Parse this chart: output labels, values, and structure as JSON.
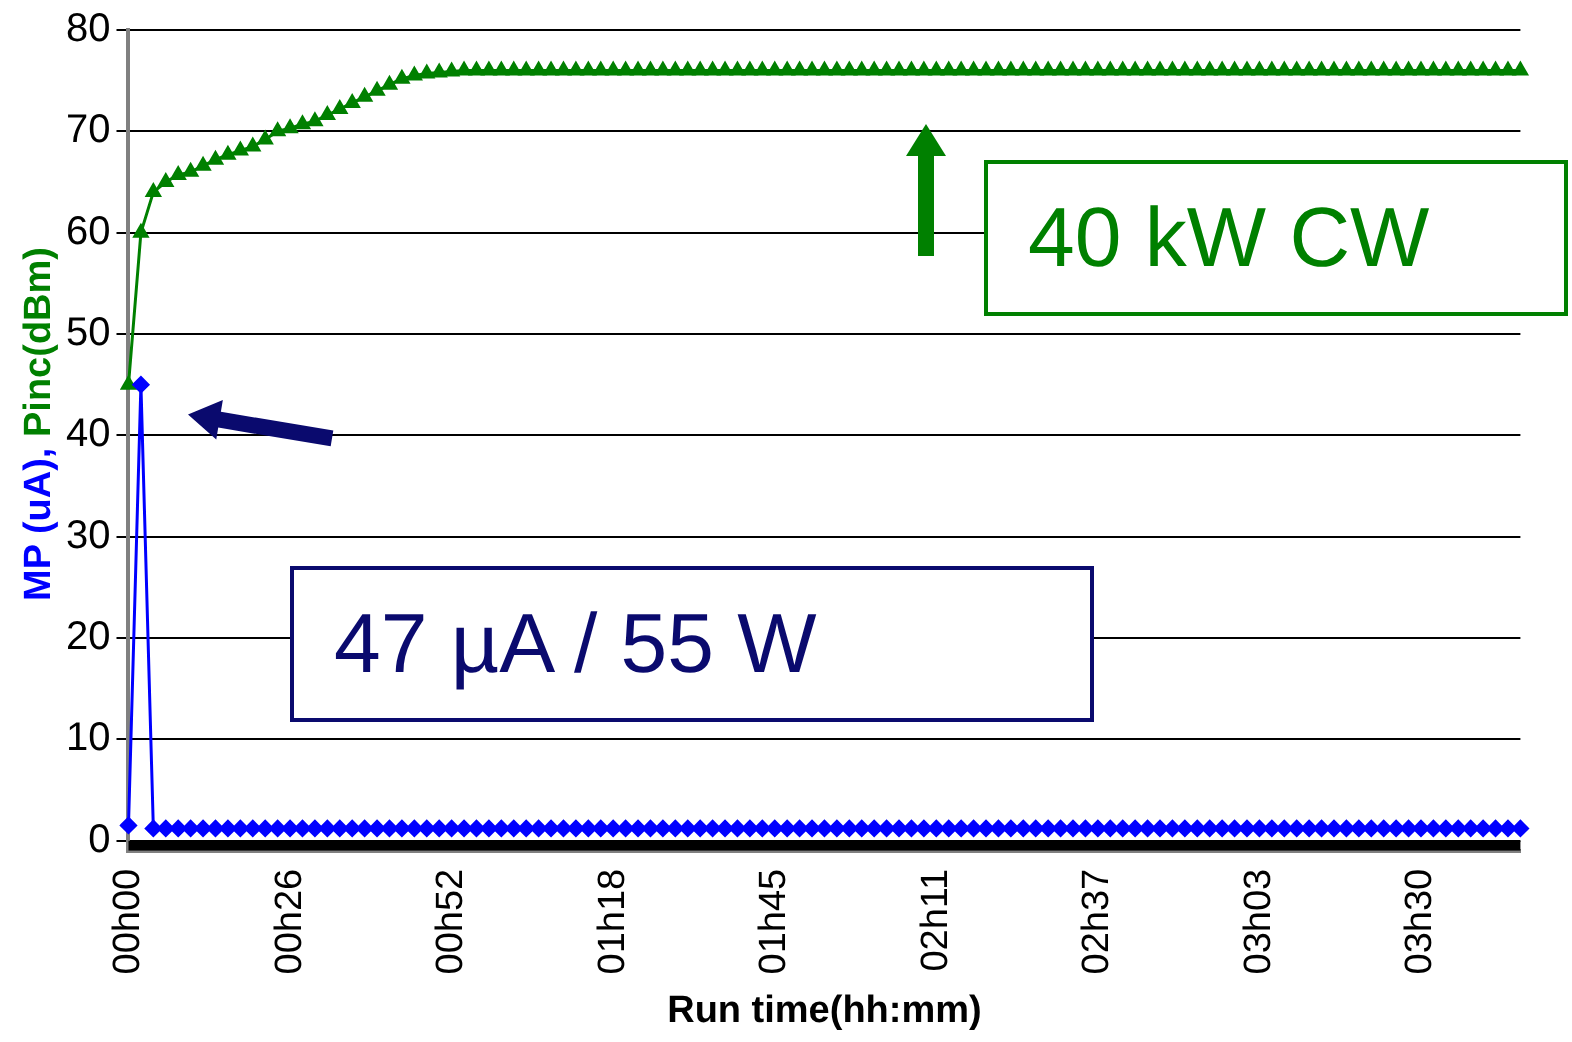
{
  "chart_data": {
    "type": "line",
    "xlabel": "Run time(hh:mm)",
    "ylabel": "MP (uA), Pinc(dBm)",
    "categories": [
      "00h00",
      null,
      null,
      null,
      null,
      null,
      null,
      null,
      null,
      null,
      null,
      null,
      null,
      "00h26",
      null,
      null,
      null,
      null,
      null,
      null,
      null,
      null,
      null,
      null,
      null,
      null,
      "00h52",
      null,
      null,
      null,
      null,
      null,
      null,
      null,
      null,
      null,
      null,
      null,
      null,
      "01h18",
      null,
      null,
      null,
      null,
      null,
      null,
      null,
      null,
      null,
      null,
      null,
      null,
      "01h45",
      null,
      null,
      null,
      null,
      null,
      null,
      null,
      null,
      null,
      null,
      null,
      null,
      "02h11",
      null,
      null,
      null,
      null,
      null,
      null,
      null,
      null,
      null,
      null,
      null,
      null,
      "02h37",
      null,
      null,
      null,
      null,
      null,
      null,
      null,
      null,
      null,
      null,
      null,
      null,
      "03h03",
      null,
      null,
      null,
      null,
      null,
      null,
      null,
      null,
      null,
      null,
      null,
      null,
      "03h30",
      null,
      null,
      null,
      null,
      null,
      null,
      null,
      null
    ],
    "ylim": [
      -1,
      80
    ],
    "yticks": [
      0,
      10,
      20,
      30,
      40,
      50,
      60,
      70,
      80
    ],
    "grid": "y",
    "legend": false,
    "series": [
      {
        "color": "#0000ff",
        "marker": "diamond",
        "values": [
          1.5,
          45,
          1.2,
          1.2,
          1.2,
          1.2,
          1.2,
          1.2,
          1.2,
          1.2,
          1.2,
          1.2,
          1.2,
          1.2,
          1.2,
          1.2,
          1.2,
          1.2,
          1.2,
          1.2,
          1.2,
          1.2,
          1.2,
          1.2,
          1.2,
          1.2,
          1.2,
          1.2,
          1.2,
          1.2,
          1.2,
          1.2,
          1.2,
          1.2,
          1.2,
          1.2,
          1.2,
          1.2,
          1.2,
          1.2,
          1.2,
          1.2,
          1.2,
          1.2,
          1.2,
          1.2,
          1.2,
          1.2,
          1.2,
          1.2,
          1.2,
          1.2,
          1.2,
          1.2,
          1.2,
          1.2,
          1.2,
          1.2,
          1.2,
          1.2,
          1.2,
          1.2,
          1.2,
          1.2,
          1.2,
          1.2,
          1.2,
          1.2,
          1.2,
          1.2,
          1.2,
          1.2,
          1.2,
          1.2,
          1.2,
          1.2,
          1.2,
          1.2,
          1.2,
          1.2,
          1.2,
          1.2,
          1.2,
          1.2,
          1.2,
          1.2,
          1.2,
          1.2,
          1.2,
          1.2,
          1.2,
          1.2,
          1.2,
          1.2,
          1.2,
          1.2,
          1.2,
          1.2,
          1.2,
          1.2,
          1.2,
          1.2,
          1.2,
          1.2,
          1.2,
          1.2,
          1.2,
          1.2,
          1.2,
          1.2,
          1.2,
          1.2,
          1.2
        ]
      },
      {
        "color": "#008000",
        "marker": "triangle",
        "values": [
          45,
          60,
          64,
          65,
          65.7,
          66,
          66.6,
          67.2,
          67.7,
          68.1,
          68.5,
          69.2,
          70,
          70.3,
          70.7,
          71,
          71.6,
          72.2,
          72.8,
          73.4,
          74,
          74.6,
          75.2,
          75.5,
          75.7,
          75.8,
          75.9,
          76,
          76,
          76,
          76,
          76,
          76,
          76,
          76,
          76,
          76,
          76,
          76,
          76,
          76,
          76,
          76,
          76,
          76,
          76,
          76,
          76,
          76,
          76,
          76,
          76,
          76,
          76,
          76,
          76,
          76,
          76,
          76,
          76,
          76,
          76,
          76,
          76,
          76,
          76,
          76,
          76,
          76,
          76,
          76,
          76,
          76,
          76,
          76,
          76,
          76,
          76,
          76,
          76,
          76,
          76,
          76,
          76,
          76,
          76,
          76,
          76,
          76,
          76,
          76,
          76,
          76,
          76,
          76,
          76,
          76,
          76,
          76,
          76,
          76,
          76,
          76,
          76,
          76,
          76,
          76,
          76,
          76,
          76,
          76,
          76,
          76
        ]
      },
      {
        "color": "#000000",
        "marker": "none",
        "values": [
          -0.5,
          -0.5,
          -0.5,
          -0.5,
          -0.5,
          -0.5,
          -0.5,
          -0.5,
          -0.5,
          -0.5,
          -0.5,
          -0.5,
          -0.5,
          -0.5,
          -0.5,
          -0.5,
          -0.5,
          -0.5,
          -0.5,
          -0.5,
          -0.5,
          -0.5,
          -0.5,
          -0.5,
          -0.5,
          -0.5,
          -0.5,
          -0.5,
          -0.5,
          -0.5,
          -0.5,
          -0.5,
          -0.5,
          -0.5,
          -0.5,
          -0.5,
          -0.5,
          -0.5,
          -0.5,
          -0.5,
          -0.5,
          -0.5,
          -0.5,
          -0.5,
          -0.5,
          -0.5,
          -0.5,
          -0.5,
          -0.5,
          -0.5,
          -0.5,
          -0.5,
          -0.5,
          -0.5,
          -0.5,
          -0.5,
          -0.5,
          -0.5,
          -0.5,
          -0.5,
          -0.5,
          -0.5,
          -0.5,
          -0.5,
          -0.5,
          -0.5,
          -0.5,
          -0.5,
          -0.5,
          -0.5,
          -0.5,
          -0.5,
          -0.5,
          -0.5,
          -0.5,
          -0.5,
          -0.5,
          -0.5,
          -0.5,
          -0.5,
          -0.5,
          -0.5,
          -0.5,
          -0.5,
          -0.5,
          -0.5,
          -0.5,
          -0.5,
          -0.5,
          -0.5,
          -0.5,
          -0.5,
          -0.5,
          -0.5,
          -0.5,
          -0.5,
          -0.5,
          -0.5,
          -0.5,
          -0.5,
          -0.5,
          -0.5,
          -0.5,
          -0.5,
          -0.5,
          -0.5,
          -0.5,
          -0.5,
          -0.5,
          -0.5,
          -0.5,
          -0.5,
          -0.5
        ]
      }
    ],
    "annotations": [
      "40 kW CW",
      "47 µA / 55 W"
    ]
  }
}
